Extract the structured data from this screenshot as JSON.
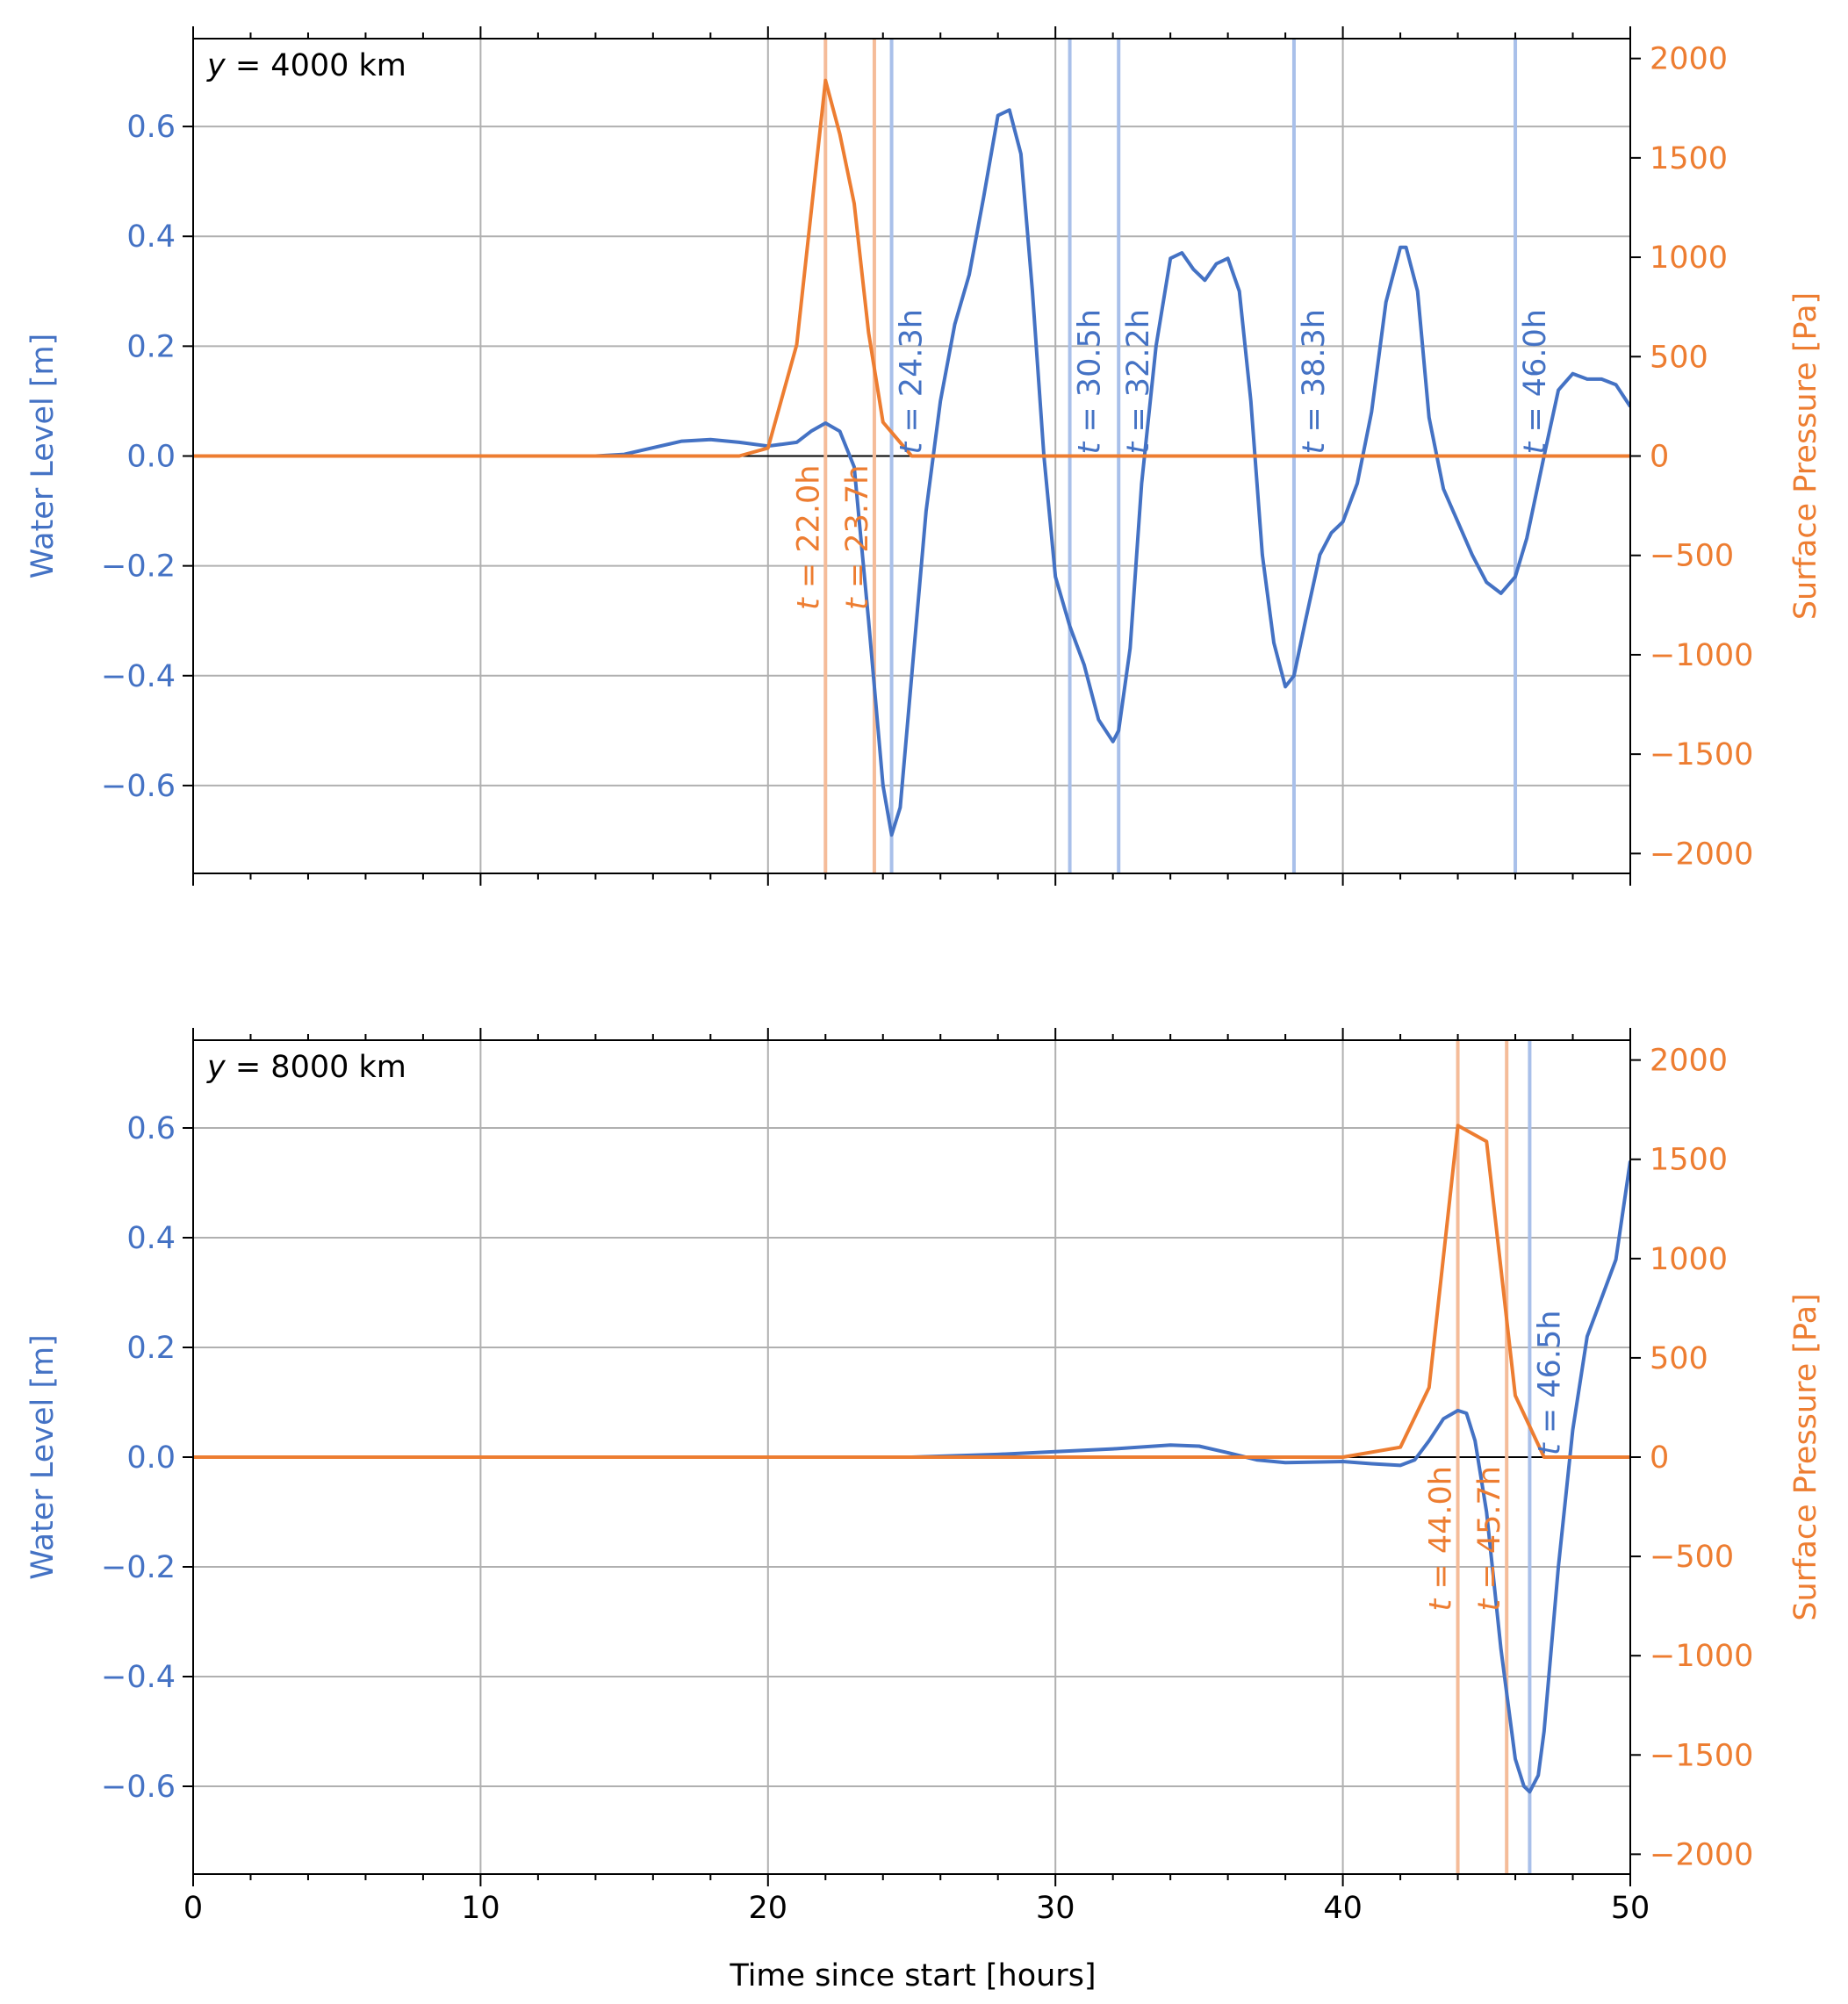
{
  "figure": {
    "xlabel": "Time since start [hours]"
  },
  "colors": {
    "water": "#4472c4",
    "water_light": "#a9c0ea",
    "pressure": "#ed7d31",
    "pressure_light": "#f5bc99",
    "grid": "#b0b0b0",
    "axis": "#000000"
  },
  "chart_data": [
    {
      "type": "line",
      "panel_label": "y = 4000 km",
      "label_prefix": "y",
      "label_rest": " = 4000 km",
      "xlim": [
        0,
        50
      ],
      "x_ticks": [
        0,
        10,
        20,
        30,
        40,
        50
      ],
      "x_tick_labels": [],
      "ylabel_left": "Water Level [m]",
      "ylabel_right": "Surface Pressure [Pa]",
      "ylim_left": [
        -0.76,
        0.76
      ],
      "ylim_right": [
        -2100,
        2100
      ],
      "left_ticks": [
        -0.6,
        -0.4,
        -0.2,
        0.0,
        0.2,
        0.4,
        0.6
      ],
      "left_tick_labels": [
        "−0.6",
        "−0.4",
        "−0.2",
        "0.0",
        "0.2",
        "0.4",
        "0.6"
      ],
      "right_ticks": [
        -2000,
        -1500,
        -1000,
        -500,
        0,
        500,
        1000,
        1500,
        2000
      ],
      "right_tick_labels": [
        "−2000",
        "−1500",
        "−1000",
        "−500",
        "0",
        "500",
        "1000",
        "1500",
        "2000"
      ],
      "grid": true,
      "series": [
        {
          "axis": "left",
          "color_key": "water",
          "x": [
            0,
            14,
            15,
            16,
            17,
            18,
            19,
            20,
            21,
            21.5,
            22,
            22.5,
            23,
            23.5,
            24,
            24.3,
            24.6,
            25,
            25.5,
            26,
            26.5,
            27,
            27.5,
            28,
            28.4,
            28.8,
            29.2,
            29.6,
            30,
            30.5,
            31,
            31.5,
            32,
            32.2,
            32.6,
            33,
            33.5,
            34,
            34.4,
            34.8,
            35.2,
            35.6,
            36,
            36.4,
            36.8,
            37.2,
            37.6,
            38,
            38.3,
            38.7,
            39.2,
            39.6,
            40,
            40.5,
            41,
            41.5,
            42,
            42.2,
            42.6,
            43,
            43.5,
            44,
            44.5,
            45,
            45.5,
            46,
            46.4,
            47,
            47.5,
            48,
            48.5,
            49,
            49.5,
            50
          ],
          "y": [
            0.0,
            0.0,
            0.003,
            0.015,
            0.027,
            0.03,
            0.025,
            0.018,
            0.025,
            0.045,
            0.06,
            0.045,
            -0.02,
            -0.3,
            -0.6,
            -0.69,
            -0.64,
            -0.4,
            -0.1,
            0.1,
            0.24,
            0.33,
            0.47,
            0.62,
            0.63,
            0.55,
            0.3,
            0.0,
            -0.22,
            -0.31,
            -0.38,
            -0.48,
            -0.52,
            -0.5,
            -0.35,
            -0.05,
            0.2,
            0.36,
            0.37,
            0.34,
            0.32,
            0.35,
            0.36,
            0.3,
            0.1,
            -0.18,
            -0.34,
            -0.42,
            -0.4,
            -0.3,
            -0.18,
            -0.14,
            -0.12,
            -0.05,
            0.08,
            0.28,
            0.38,
            0.38,
            0.3,
            0.07,
            -0.06,
            -0.12,
            -0.18,
            -0.23,
            -0.25,
            -0.22,
            -0.15,
            0.0,
            0.12,
            0.15,
            0.14,
            0.14,
            0.13,
            0.09
          ]
        },
        {
          "axis": "right",
          "color_key": "pressure",
          "x": [
            0,
            19,
            20,
            21,
            22,
            22.5,
            23,
            23.5,
            24,
            25,
            26,
            50
          ],
          "y": [
            0,
            0,
            40,
            560,
            1890,
            1620,
            1270,
            620,
            170,
            0,
            0,
            0
          ]
        }
      ],
      "vlines": [
        {
          "x": 22.0,
          "color_key": "pressure_light",
          "label": "t = 22.0h",
          "label_prefix": "t",
          "label_rest": " = 22.0h",
          "label_side": "left"
        },
        {
          "x": 23.7,
          "color_key": "pressure_light",
          "label": "t = 23.7h",
          "label_prefix": "t",
          "label_rest": " = 23.7h",
          "label_side": "left"
        },
        {
          "x": 24.3,
          "color_key": "water_light",
          "label": "t = 24.3h",
          "label_prefix": "t",
          "label_rest": " = 24.3h",
          "label_side": "right"
        },
        {
          "x": 30.5,
          "color_key": "water_light",
          "label": "t = 30.5h",
          "label_prefix": "t",
          "label_rest": " = 30.5h",
          "label_side": "right"
        },
        {
          "x": 32.2,
          "color_key": "water_light",
          "label": "t = 32.2h",
          "label_prefix": "t",
          "label_rest": " = 32.2h",
          "label_side": "right"
        },
        {
          "x": 38.3,
          "color_key": "water_light",
          "label": "t = 38.3h",
          "label_prefix": "t",
          "label_rest": " = 38.3h",
          "label_side": "right"
        },
        {
          "x": 46.0,
          "color_key": "water_light",
          "label": "t = 46.0h",
          "label_prefix": "t",
          "label_rest": " = 46.0h",
          "label_side": "right"
        }
      ]
    },
    {
      "type": "line",
      "panel_label": "y = 8000 km",
      "label_prefix": "y",
      "label_rest": " = 8000 km",
      "xlim": [
        0,
        50
      ],
      "x_ticks": [
        0,
        10,
        20,
        30,
        40,
        50
      ],
      "x_tick_labels": [
        "0",
        "10",
        "20",
        "30",
        "40",
        "50"
      ],
      "ylabel_left": "Water Level [m]",
      "ylabel_right": "Surface Pressure [Pa]",
      "ylim_left": [
        -0.76,
        0.76
      ],
      "ylim_right": [
        -2100,
        2100
      ],
      "left_ticks": [
        -0.6,
        -0.4,
        -0.2,
        0.0,
        0.2,
        0.4,
        0.6
      ],
      "left_tick_labels": [
        "−0.6",
        "−0.4",
        "−0.2",
        "0.0",
        "0.2",
        "0.4",
        "0.6"
      ],
      "right_ticks": [
        -2000,
        -1500,
        -1000,
        -500,
        0,
        500,
        1000,
        1500,
        2000
      ],
      "right_tick_labels": [
        "−2000",
        "−1500",
        "−1000",
        "−500",
        "0",
        "500",
        "1000",
        "1500",
        "2000"
      ],
      "grid": true,
      "series": [
        {
          "axis": "left",
          "color_key": "water",
          "x": [
            0,
            25,
            28,
            30,
            32,
            34,
            35,
            36,
            37,
            38,
            40,
            41,
            42,
            42.5,
            43,
            43.5,
            44,
            44.3,
            44.6,
            45,
            45.5,
            46,
            46.3,
            46.5,
            46.8,
            47,
            47.5,
            48,
            48.5,
            49,
            49.5,
            50
          ],
          "y": [
            0.0,
            0.0,
            0.005,
            0.01,
            0.015,
            0.022,
            0.02,
            0.008,
            -0.005,
            -0.01,
            -0.008,
            -0.012,
            -0.015,
            -0.005,
            0.03,
            0.07,
            0.085,
            0.08,
            0.03,
            -0.1,
            -0.35,
            -0.55,
            -0.6,
            -0.61,
            -0.58,
            -0.5,
            -0.2,
            0.05,
            0.22,
            0.29,
            0.36,
            0.54
          ]
        },
        {
          "axis": "right",
          "color_key": "pressure",
          "x": [
            0,
            40,
            42,
            43,
            44,
            45,
            46,
            47,
            50
          ],
          "y": [
            0,
            0,
            50,
            350,
            1670,
            1590,
            310,
            0,
            0
          ]
        }
      ],
      "vlines": [
        {
          "x": 44.0,
          "color_key": "pressure_light",
          "label": "t = 44.0h",
          "label_prefix": "t",
          "label_rest": " = 44.0h",
          "label_side": "left"
        },
        {
          "x": 45.7,
          "color_key": "pressure_light",
          "label": "t = 45.7h",
          "label_prefix": "t",
          "label_rest": " = 45.7h",
          "label_side": "left"
        },
        {
          "x": 46.5,
          "color_key": "water_light",
          "label": "t = 46.5h",
          "label_prefix": "t",
          "label_rest": " = 46.5h",
          "label_side": "right"
        }
      ]
    }
  ]
}
